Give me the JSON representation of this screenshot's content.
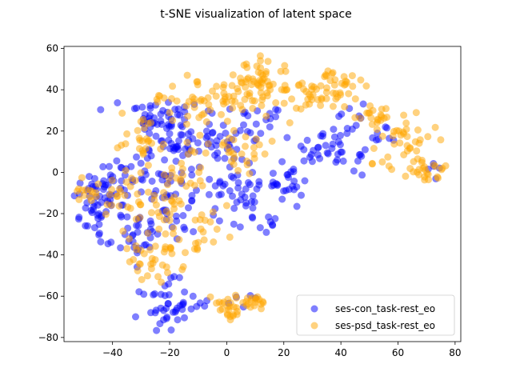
{
  "chart_data": {
    "type": "scatter",
    "title": "t-SNE visualization of latent space",
    "xlabel": "",
    "ylabel": "",
    "xlim": [
      -57,
      82
    ],
    "ylim": [
      -82,
      61
    ],
    "xticks": [
      -40,
      -20,
      0,
      20,
      40,
      60,
      80
    ],
    "yticks": [
      -80,
      -60,
      -40,
      -20,
      0,
      20,
      40,
      60
    ],
    "grid": false,
    "legend_position": "lower-right",
    "marker_alpha": 0.5,
    "series": [
      {
        "name": "ses-con_task-rest_eo",
        "color": "#0000ff",
        "clusters": [
          {
            "cx": -46,
            "cy": -15,
            "sx": 4,
            "sy": 9,
            "n": 45
          },
          {
            "cx": -38,
            "cy": -8,
            "sx": 4,
            "sy": 8,
            "n": 25
          },
          {
            "cx": -35,
            "cy": -32,
            "sx": 5,
            "sy": 4,
            "n": 15
          },
          {
            "cx": -28,
            "cy": 28,
            "sx": 4,
            "sy": 5,
            "n": 20
          },
          {
            "cx": -20,
            "cy": 22,
            "sx": 6,
            "sy": 8,
            "n": 40
          },
          {
            "cx": -22,
            "cy": 0,
            "sx": 7,
            "sy": 8,
            "n": 40
          },
          {
            "cx": -22,
            "cy": -25,
            "sx": 6,
            "sy": 9,
            "n": 35
          },
          {
            "cx": -22,
            "cy": -65,
            "sx": 4,
            "sy": 6,
            "n": 40
          },
          {
            "cx": -5,
            "cy": 15,
            "sx": 7,
            "sy": 8,
            "n": 40
          },
          {
            "cx": 2,
            "cy": -5,
            "sx": 6,
            "sy": 8,
            "n": 35
          },
          {
            "cx": 10,
            "cy": -18,
            "sx": 4,
            "sy": 6,
            "n": 20
          },
          {
            "cx": 10,
            "cy": 22,
            "sx": 6,
            "sy": 6,
            "n": 20
          },
          {
            "cx": 20,
            "cy": -5,
            "sx": 5,
            "sy": 4,
            "n": 25
          },
          {
            "cx": 32,
            "cy": 10,
            "sx": 5,
            "sy": 4,
            "n": 20
          },
          {
            "cx": 42,
            "cy": 20,
            "sx": 4,
            "sy": 6,
            "n": 20
          },
          {
            "cx": 42,
            "cy": 5,
            "sx": 3,
            "sy": 3,
            "n": 8
          },
          {
            "cx": 10,
            "cy": -62,
            "sx": 4,
            "sy": 2,
            "n": 5
          },
          {
            "cx": -8,
            "cy": -63,
            "sx": 3,
            "sy": 2,
            "n": 5
          },
          {
            "cx": 73,
            "cy": 0,
            "sx": 1.5,
            "sy": 2,
            "n": 5
          },
          {
            "cx": 55,
            "cy": 20,
            "sx": 4,
            "sy": 4,
            "n": 8
          }
        ]
      },
      {
        "name": "ses-psd_task-rest_eo",
        "color": "#ffa500",
        "clusters": [
          {
            "cx": -48,
            "cy": -10,
            "sx": 4,
            "sy": 4,
            "n": 15
          },
          {
            "cx": -35,
            "cy": -15,
            "sx": 5,
            "sy": 8,
            "n": 25
          },
          {
            "cx": -30,
            "cy": 18,
            "sx": 4,
            "sy": 6,
            "n": 20
          },
          {
            "cx": -25,
            "cy": -42,
            "sx": 5,
            "sy": 6,
            "n": 35
          },
          {
            "cx": -15,
            "cy": 35,
            "sx": 6,
            "sy": 6,
            "n": 30
          },
          {
            "cx": -18,
            "cy": -15,
            "sx": 6,
            "sy": 8,
            "n": 35
          },
          {
            "cx": -15,
            "cy": 5,
            "sx": 6,
            "sy": 6,
            "n": 25
          },
          {
            "cx": 0,
            "cy": 33,
            "sx": 7,
            "sy": 7,
            "n": 35
          },
          {
            "cx": 5,
            "cy": 10,
            "sx": 6,
            "sy": 7,
            "n": 25
          },
          {
            "cx": 10,
            "cy": 45,
            "sx": 6,
            "sy": 4,
            "n": 30
          },
          {
            "cx": 18,
            "cy": 42,
            "sx": 6,
            "sy": 6,
            "n": 30
          },
          {
            "cx": 30,
            "cy": 35,
            "sx": 5,
            "sy": 5,
            "n": 25
          },
          {
            "cx": 40,
            "cy": 42,
            "sx": 4,
            "sy": 4,
            "n": 25
          },
          {
            "cx": 50,
            "cy": 28,
            "sx": 5,
            "sy": 4,
            "n": 20
          },
          {
            "cx": 62,
            "cy": 18,
            "sx": 5,
            "sy": 6,
            "n": 30
          },
          {
            "cx": 70,
            "cy": 2,
            "sx": 3,
            "sy": 4,
            "n": 25
          },
          {
            "cx": 8,
            "cy": -63,
            "sx": 6,
            "sy": 2,
            "n": 30
          },
          {
            "cx": 1,
            "cy": -68,
            "sx": 2,
            "sy": 2,
            "n": 12
          },
          {
            "cx": -10,
            "cy": -30,
            "sx": 5,
            "sy": 6,
            "n": 15
          },
          {
            "cx": 55,
            "cy": 5,
            "sx": 3,
            "sy": 2,
            "n": 6
          }
        ]
      }
    ]
  }
}
